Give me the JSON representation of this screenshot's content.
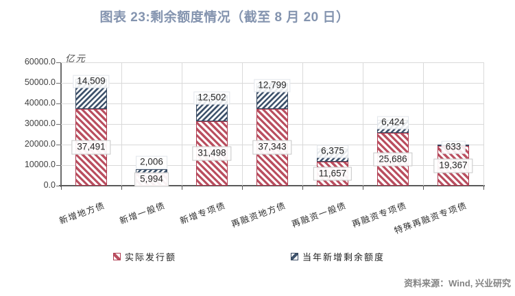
{
  "title": "图表 23:剩余额度情况（截至 8 月 20 日）",
  "source": "资料来源：Wind, 兴业研究",
  "chart_data": {
    "type": "bar",
    "subtype": "stacked",
    "title": "图表 23:剩余额度情况（截至 8 月 20 日）",
    "unit_label": "亿元",
    "categories": [
      "新增地方债",
      "新增一般债",
      "新增专项债",
      "再融资地方债",
      "再融资一般债",
      "再融资专项债",
      "特殊再融资专项债"
    ],
    "series": [
      {
        "name": "实际发行额",
        "color": "#BA4F60",
        "hatch": "diagonal-down",
        "values": [
          37491,
          5994,
          31498,
          37343,
          11657,
          25686,
          19367
        ]
      },
      {
        "name": "当年新增剩余额度",
        "color": "#3E526B",
        "hatch": "diagonal-up",
        "values": [
          14509,
          2006,
          12502,
          12799,
          6375,
          6424,
          633
        ]
      }
    ],
    "ylabel": "",
    "xlabel": "",
    "ylim": [
      0,
      60000
    ],
    "ytick_step": 10000,
    "ytick_labels": [
      "0.0",
      "10000.0",
      "20000.0",
      "30000.0",
      "40000.0",
      "50000.0",
      "60000.0"
    ],
    "grid": "horizontal and vertical, light gray",
    "legend_position": "bottom",
    "accent_colors": {
      "title": "#8494AF",
      "axis": "#595959",
      "gridline": "#d9d9d9",
      "source_text": "#838383"
    }
  }
}
